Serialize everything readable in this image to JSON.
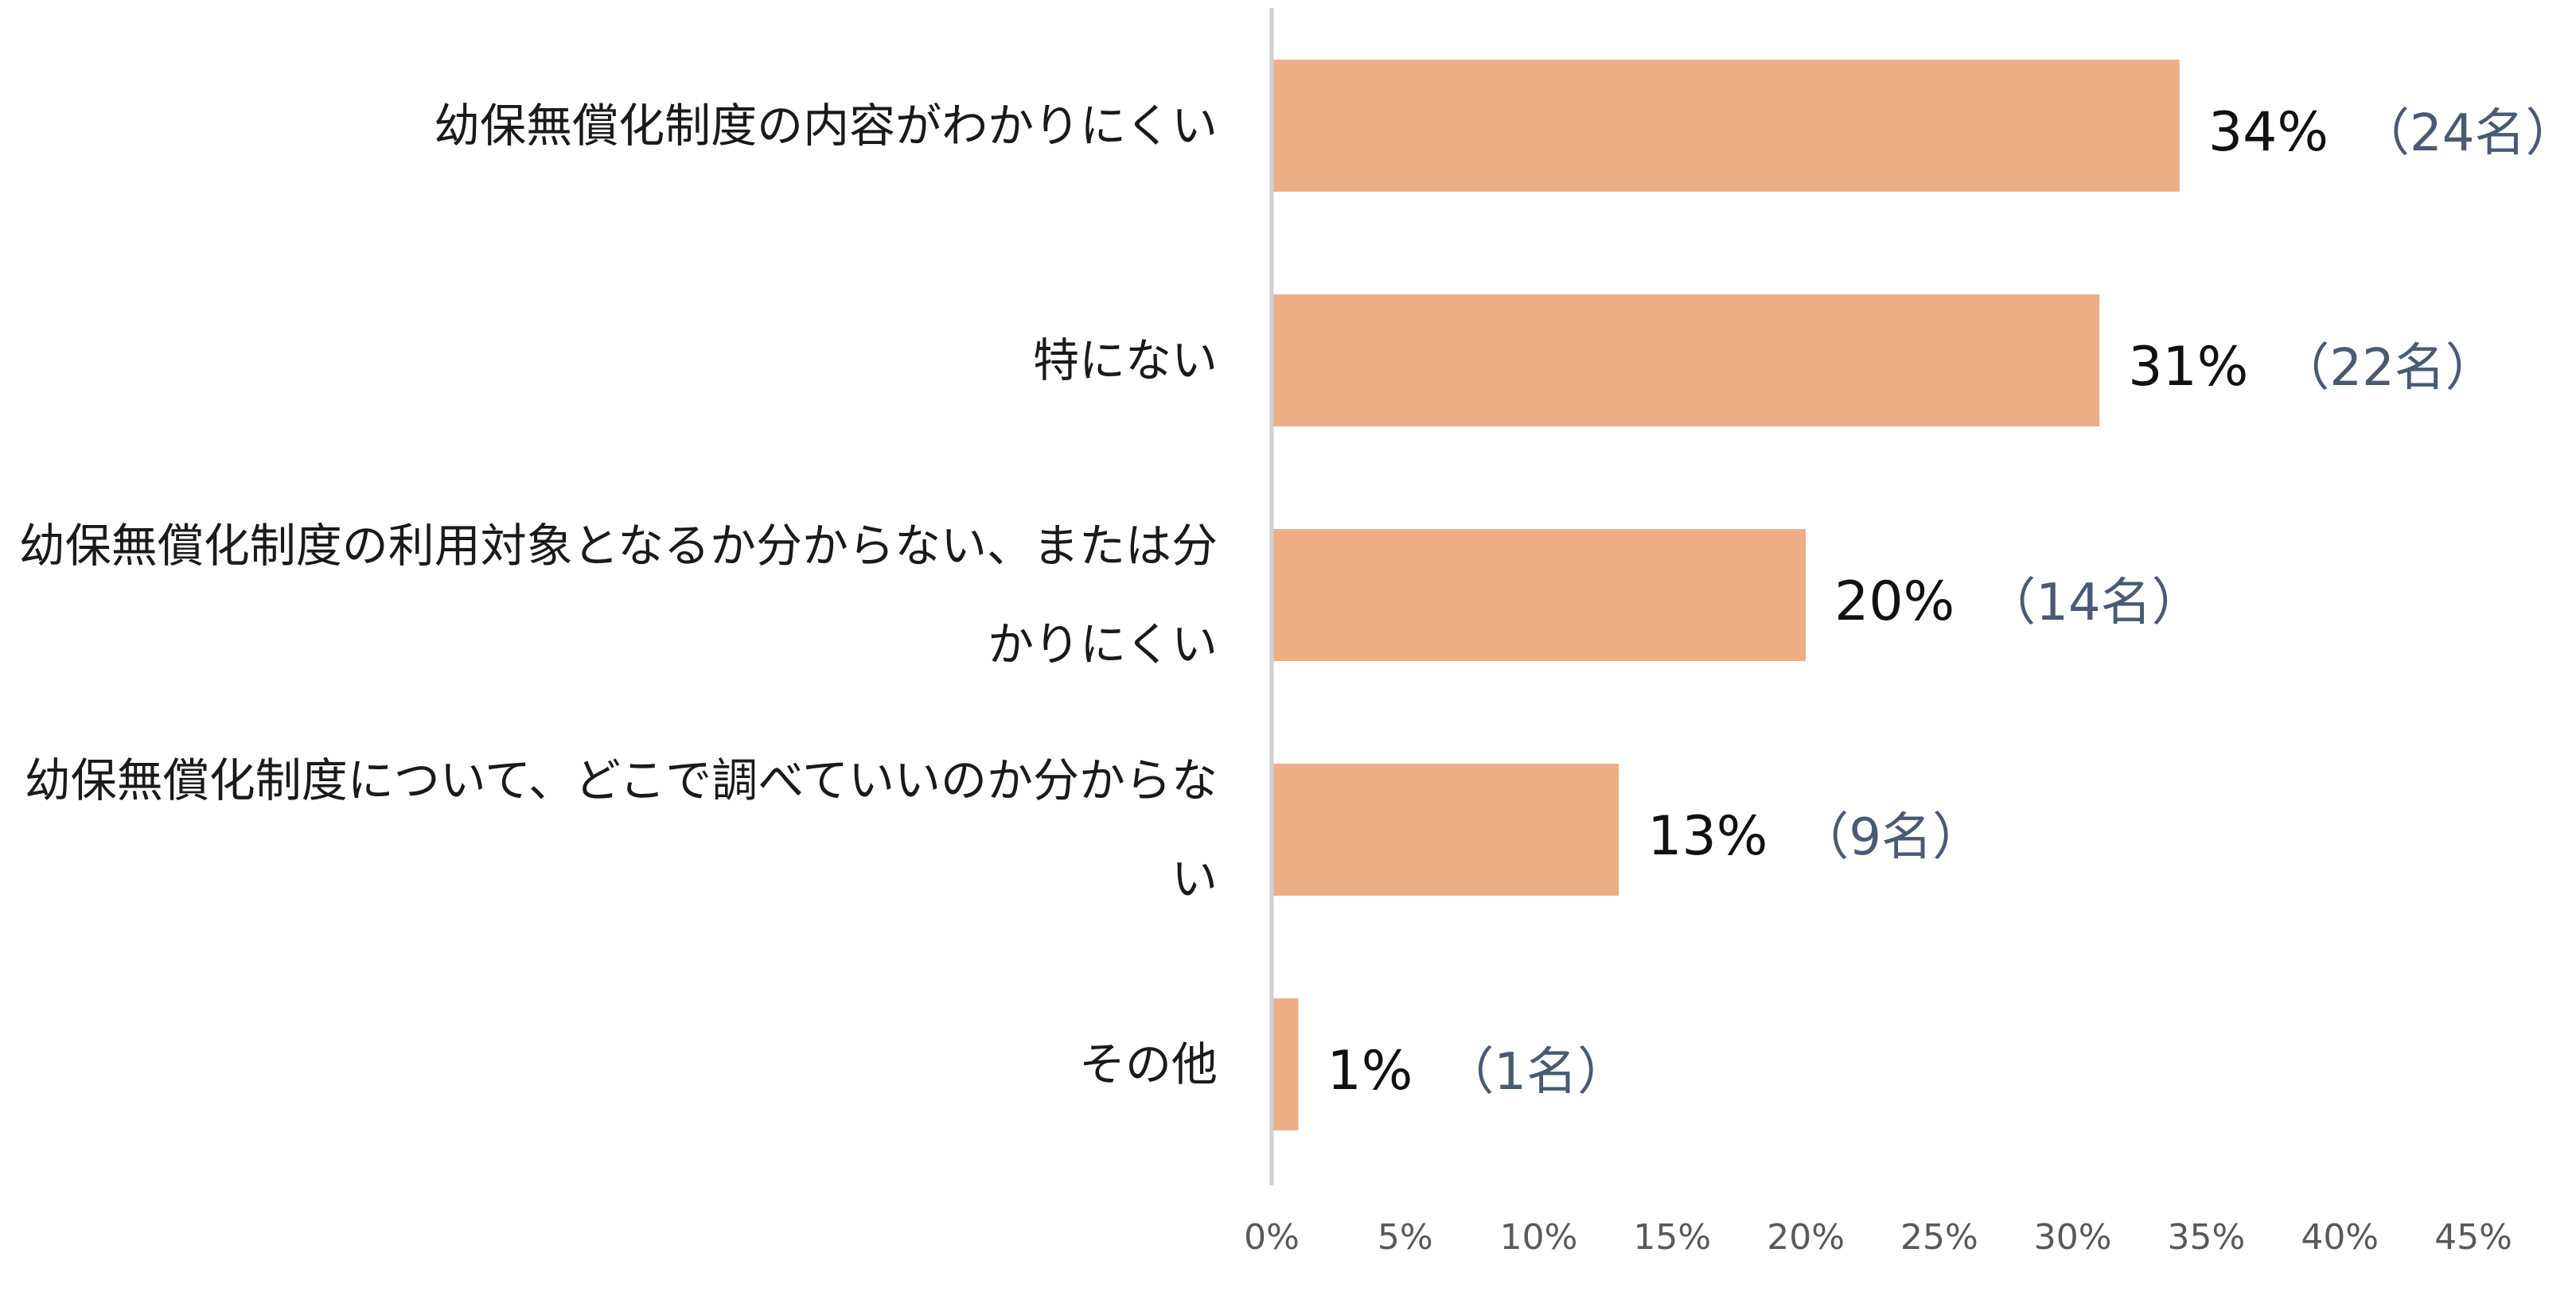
{
  "chart_data": {
    "type": "bar",
    "orientation": "horizontal",
    "categories": [
      "幼保無償化制度の内容がわかりにくい",
      "特にない",
      "幼保無償化制度の利用対象となるか分からない、または分かりにくい",
      "幼保無償化制度について、どこで調べていいのか分からない",
      "その他"
    ],
    "values": [
      34,
      31,
      20,
      13,
      1
    ],
    "value_labels": [
      "34%",
      "31%",
      "20%",
      "13%",
      "1%"
    ],
    "count_labels": [
      "（24名）",
      "（22名）",
      "（14名）",
      "（9名）",
      "（1名）"
    ],
    "xlim": [
      0,
      45
    ],
    "x_ticks": [
      "0%",
      "5%",
      "10%",
      "15%",
      "20%",
      "25%",
      "30%",
      "35%",
      "40%",
      "45%"
    ],
    "bar_color": "#EDAE86",
    "axis_color": "#D0D0D0",
    "grid": false,
    "legend": "none"
  }
}
